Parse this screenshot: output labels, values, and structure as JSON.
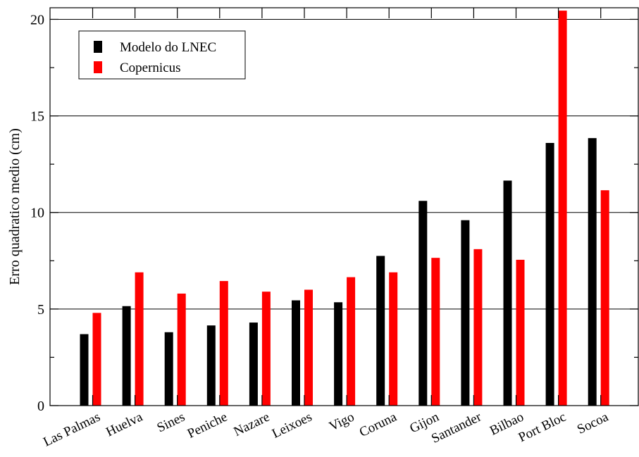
{
  "chart_data": {
    "type": "bar",
    "title": "",
    "xlabel": "",
    "ylabel": "Erro quadratico medio (cm)",
    "ylim": [
      0,
      20.6
    ],
    "yticks": [
      0,
      5,
      10,
      15,
      20
    ],
    "grid": "horizontal lines at major ticks",
    "legend_position": "top-left",
    "categories": [
      "Las Palmas",
      "Huelva",
      "Sines",
      "Peniche",
      "Nazare",
      "Leixoes",
      "Vigo",
      "Coruna",
      "Gijon",
      "Santander",
      "Bilbao",
      "Port Bloc",
      "Socoa"
    ],
    "series": [
      {
        "name": "Modelo do LNEC",
        "color": "#000000",
        "values": [
          3.7,
          5.15,
          3.8,
          4.15,
          4.3,
          5.45,
          5.35,
          7.75,
          10.6,
          9.6,
          11.65,
          13.6,
          13.85
        ]
      },
      {
        "name": "Copernicus",
        "color": "#ff0000",
        "values": [
          4.8,
          6.9,
          5.8,
          6.45,
          5.9,
          6.0,
          6.65,
          6.9,
          7.65,
          8.1,
          7.55,
          20.45,
          11.15
        ]
      }
    ]
  }
}
